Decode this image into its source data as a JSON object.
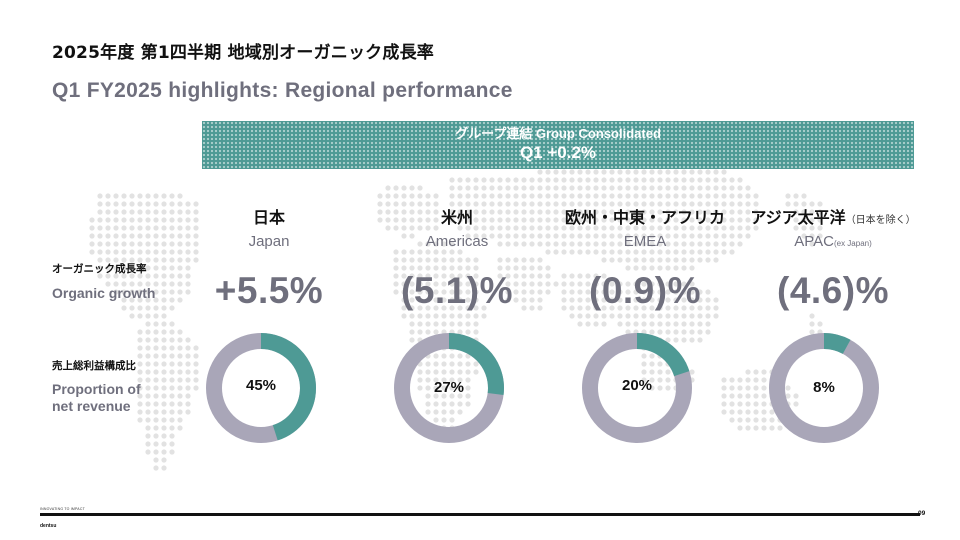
{
  "title_jp": "2025年度 第1四半期 地域別オーガニック成長率",
  "title_en": "Q1 FY2025 highlights: Regional performance",
  "banner": {
    "sub": "グループ連結 Group Consolidated",
    "main": "Q1 +0.2%",
    "color": "#4e9a95"
  },
  "rows": {
    "organic": {
      "jp": "オーガニック成長率",
      "en": "Organic growth"
    },
    "proportion": {
      "jp": "売上総利益構成比",
      "en_line1": "Proportion of",
      "en_line2": "net revenue"
    }
  },
  "regions": [
    {
      "jp": "日本",
      "jp_note": "",
      "en": "Japan",
      "en_note": "",
      "growth": "+5.5%",
      "share_label": "45%",
      "share": 45
    },
    {
      "jp": "米州",
      "jp_note": "",
      "en": "Americas",
      "en_note": "",
      "growth": "(5.1)%",
      "share_label": "27%",
      "share": 27
    },
    {
      "jp": "欧州・中東・アフリカ",
      "jp_note": "",
      "en": "EMEA",
      "en_note": "",
      "growth": "(0.9)%",
      "share_label": "20%",
      "share": 20
    },
    {
      "jp": "アジア太平洋",
      "jp_note": "（日本を除く）",
      "en": "APAC",
      "en_note": "(ex Japan)",
      "growth": "(4.6)%",
      "share_label": "8%",
      "share": 8
    }
  ],
  "colors": {
    "accent": "#4e9a95",
    "ring": "#a9a6b8",
    "muted_text": "#6f6f7d",
    "map_dot": "#e2e2e2"
  },
  "footer": {
    "tag": "INNOVATING TO IMPACT",
    "logo": "dentsu",
    "page": "09"
  }
}
